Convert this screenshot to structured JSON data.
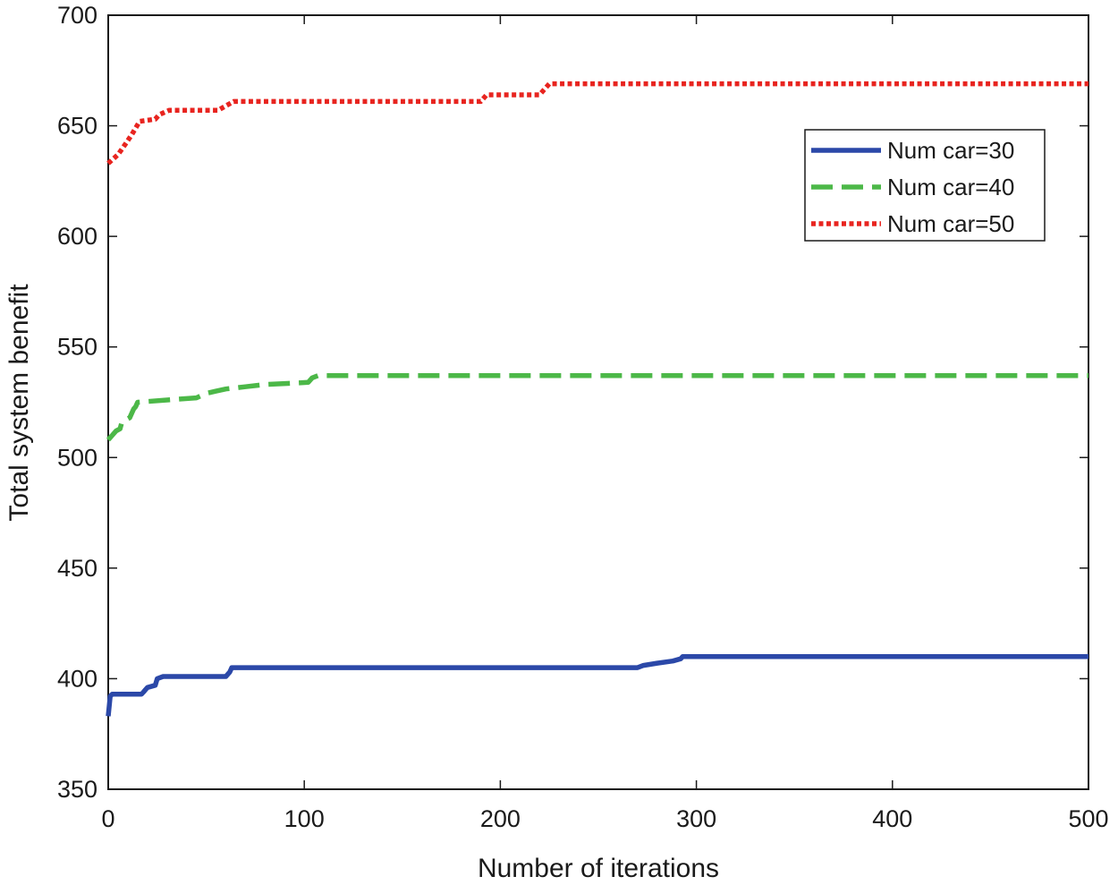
{
  "chart_data": {
    "type": "line",
    "xlabel": "Number of iterations",
    "ylabel": "Total system benefit",
    "xlim": [
      0,
      500
    ],
    "ylim": [
      350,
      700
    ],
    "xticks": [
      0,
      100,
      200,
      300,
      400,
      500
    ],
    "yticks": [
      350,
      400,
      450,
      500,
      550,
      600,
      650,
      700
    ],
    "grid": false,
    "legend_position": "top-right",
    "series": [
      {
        "name": "Num car=30",
        "color": "#2b48a8",
        "style": "solid",
        "points": [
          [
            0,
            383
          ],
          [
            1,
            392
          ],
          [
            2,
            393
          ],
          [
            17,
            393
          ],
          [
            18,
            394
          ],
          [
            19,
            395
          ],
          [
            20,
            396
          ],
          [
            24,
            397
          ],
          [
            25,
            400
          ],
          [
            28,
            401
          ],
          [
            60,
            401
          ],
          [
            62,
            403
          ],
          [
            63,
            405
          ],
          [
            270,
            405
          ],
          [
            273,
            406
          ],
          [
            280,
            407
          ],
          [
            288,
            408
          ],
          [
            292,
            409
          ],
          [
            293,
            410
          ],
          [
            500,
            410
          ]
        ]
      },
      {
        "name": "Num car=40",
        "color": "#4cb848",
        "style": "dashed",
        "points": [
          [
            0,
            508
          ],
          [
            2,
            510
          ],
          [
            4,
            512
          ],
          [
            6,
            513
          ],
          [
            7,
            516
          ],
          [
            11,
            518
          ],
          [
            13,
            522
          ],
          [
            14,
            523
          ],
          [
            15,
            525
          ],
          [
            30,
            526
          ],
          [
            45,
            527
          ],
          [
            50,
            529
          ],
          [
            55,
            530
          ],
          [
            60,
            531
          ],
          [
            70,
            532
          ],
          [
            80,
            533
          ],
          [
            102,
            534
          ],
          [
            104,
            536
          ],
          [
            107,
            537
          ],
          [
            500,
            537
          ]
        ]
      },
      {
        "name": "Num car=50",
        "color": "#e8241f",
        "style": "dotted",
        "points": [
          [
            0,
            633
          ],
          [
            5,
            637
          ],
          [
            9,
            642
          ],
          [
            12,
            646
          ],
          [
            14,
            649
          ],
          [
            16,
            652
          ],
          [
            24,
            653
          ],
          [
            26,
            655
          ],
          [
            31,
            657
          ],
          [
            56,
            657
          ],
          [
            60,
            659
          ],
          [
            64,
            661
          ],
          [
            190,
            661
          ],
          [
            193,
            664
          ],
          [
            220,
            664
          ],
          [
            225,
            669
          ],
          [
            500,
            669
          ]
        ]
      }
    ]
  }
}
